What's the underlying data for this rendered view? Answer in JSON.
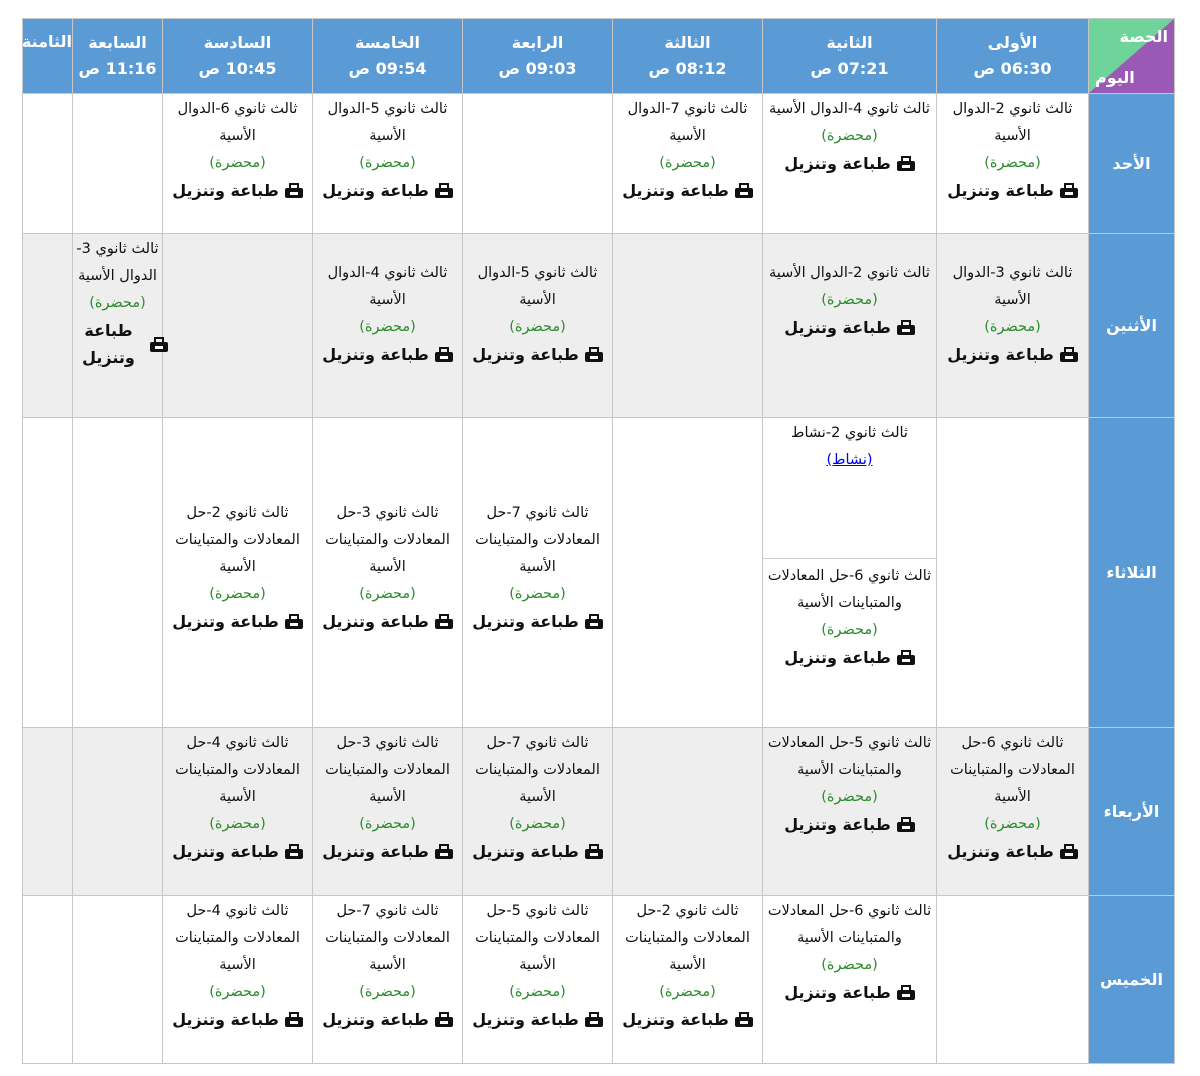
{
  "header": {
    "corner_period": "الحصة",
    "corner_day": "اليوم",
    "periods": [
      {
        "name": "الأولى",
        "time": "06:30 ص"
      },
      {
        "name": "الثانية",
        "time": "07:21 ص"
      },
      {
        "name": "الثالثة",
        "time": "08:12 ص"
      },
      {
        "name": "الرابعة",
        "time": "09:03 ص"
      },
      {
        "name": "الخامسة",
        "time": "09:54 ص"
      },
      {
        "name": "السادسة",
        "time": "10:45 ص"
      },
      {
        "name": "السابعة",
        "time": "11:16 ص"
      },
      {
        "name": "الثامنة",
        "time": ""
      }
    ]
  },
  "labels": {
    "print": "طباعة وتنزيل",
    "lecture": "(محضرة)"
  },
  "rows": [
    {
      "day": "الأحد",
      "cells": [
        [
          {
            "title": "ثالث ثانوي 2-الدوال الأسية",
            "type": "(محضرة)",
            "action": "طباعة وتنزيل"
          }
        ],
        [
          {
            "title": "ثالث ثانوي 4-الدوال الأسية",
            "type": "(محضرة)",
            "action": "طباعة وتنزيل"
          }
        ],
        [
          {
            "title": "ثالث ثانوي 7-الدوال الأسية",
            "type": "(محضرة)",
            "action": "طباعة وتنزيل"
          }
        ],
        [],
        [
          {
            "title": "ثالث ثانوي 5-الدوال الأسية",
            "type": "(محضرة)",
            "action": "طباعة وتنزيل"
          }
        ],
        [
          {
            "title": "ثالث ثانوي 6-الدوال الأسية",
            "type": "(محضرة)",
            "action": "طباعة وتنزيل"
          }
        ],
        [],
        []
      ]
    },
    {
      "day": "الأثنين",
      "cells": [
        [
          {
            "title": "ثالث ثانوي 3-الدوال الأسية",
            "type": "(محضرة)",
            "action": "طباعة وتنزيل"
          }
        ],
        [
          {
            "title": "ثالث ثانوي 2-الدوال الأسية",
            "type": "(محضرة)",
            "action": "طباعة وتنزيل"
          }
        ],
        [],
        [
          {
            "title": "ثالث ثانوي 5-الدوال الأسية",
            "type": "(محضرة)",
            "action": "طباعة وتنزيل"
          }
        ],
        [
          {
            "title": "ثالث ثانوي 4-الدوال الأسية",
            "type": "(محضرة)",
            "action": "طباعة وتنزيل"
          }
        ],
        [],
        [
          {
            "title": "ثالث ثانوي 3-الدوال الأسية",
            "type": "(محضرة)",
            "action": "طباعة وتنزيل"
          }
        ],
        []
      ]
    },
    {
      "day": "الثلاثاء",
      "cells": [
        [],
        [
          {
            "title": "ثالث ثانوي 2-نشاط",
            "link": "(نشاط)"
          },
          {
            "title": "ثالث ثانوي 6-حل المعادلات والمتباينات الأسية",
            "type": "(محضرة)",
            "action": "طباعة وتنزيل"
          }
        ],
        [],
        [
          {
            "title": "ثالث ثانوي 7-حل المعادلات والمتباينات الأسية",
            "type": "(محضرة)",
            "action": "طباعة وتنزيل"
          }
        ],
        [
          {
            "title": "ثالث ثانوي 3-حل المعادلات والمتباينات الأسية",
            "type": "(محضرة)",
            "action": "طباعة وتنزيل"
          }
        ],
        [
          {
            "title": "ثالث ثانوي 2-حل المعادلات والمتباينات الأسية",
            "type": "(محضرة)",
            "action": "طباعة وتنزيل"
          }
        ],
        [],
        []
      ]
    },
    {
      "day": "الأربعاء",
      "cells": [
        [
          {
            "title": "ثالث ثانوي 6-حل المعادلات والمتباينات الأسية",
            "type": "(محضرة)",
            "action": "طباعة وتنزيل"
          }
        ],
        [
          {
            "title": "ثالث ثانوي 5-حل المعادلات والمتباينات الأسية",
            "type": "(محضرة)",
            "action": "طباعة وتنزيل"
          }
        ],
        [],
        [
          {
            "title": "ثالث ثانوي 7-حل المعادلات والمتباينات الأسية",
            "type": "(محضرة)",
            "action": "طباعة وتنزيل"
          }
        ],
        [
          {
            "title": "ثالث ثانوي 3-حل المعادلات والمتباينات الأسية",
            "type": "(محضرة)",
            "action": "طباعة وتنزيل"
          }
        ],
        [
          {
            "title": "ثالث ثانوي 4-حل المعادلات والمتباينات الأسية",
            "type": "(محضرة)",
            "action": "طباعة وتنزيل"
          }
        ],
        [],
        []
      ]
    },
    {
      "day": "الخميس",
      "cells": [
        [],
        [
          {
            "title": "ثالث ثانوي 6-حل المعادلات والمتباينات الأسية",
            "type": "(محضرة)",
            "action": "طباعة وتنزيل"
          }
        ],
        [
          {
            "title": "ثالث ثانوي 2-حل المعادلات والمتباينات الأسية",
            "type": "(محضرة)",
            "action": "طباعة وتنزيل"
          }
        ],
        [
          {
            "title": "ثالث ثانوي 5-حل المعادلات والمتباينات الأسية",
            "type": "(محضرة)",
            "action": "طباعة وتنزيل"
          }
        ],
        [
          {
            "title": "ثالث ثانوي 7-حل المعادلات والمتباينات الأسية",
            "type": "(محضرة)",
            "action": "طباعة وتنزيل"
          }
        ],
        [
          {
            "title": "ثالث ثانوي 4-حل المعادلات والمتباينات الأسية",
            "type": "(محضرة)",
            "action": "طباعة وتنزيل"
          }
        ],
        [],
        []
      ]
    }
  ],
  "colors": {
    "header_blue": "#5b9bd5",
    "lecture_green": "#2e8b2e",
    "corner_green": "#6fd49a",
    "corner_purple": "#9b59b6",
    "link_blue": "#0000ee"
  },
  "icons": {
    "print": "printer-icon"
  }
}
